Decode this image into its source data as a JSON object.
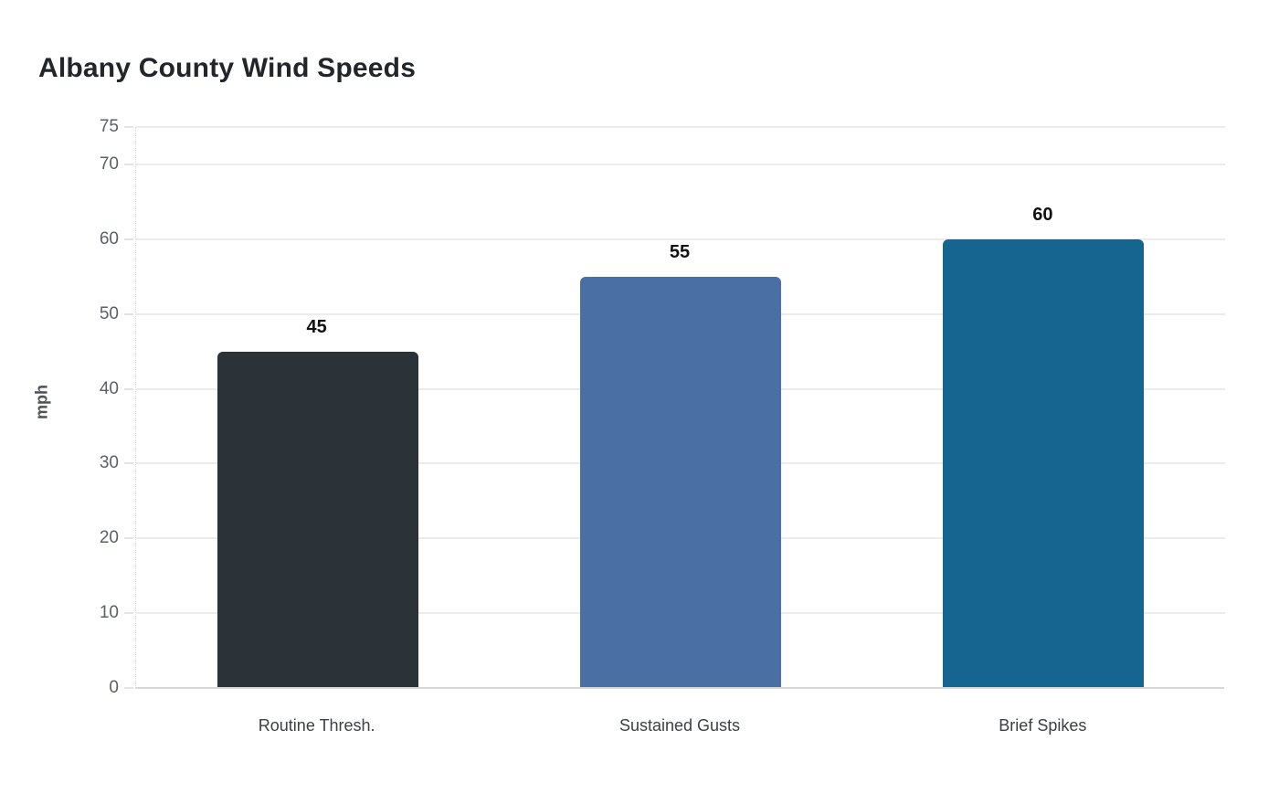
{
  "title": "Albany County Wind Speeds",
  "chart_data": {
    "type": "bar",
    "title": "Albany County Wind Speeds",
    "xlabel": "",
    "ylabel": "mph",
    "categories": [
      "Routine Thresh.",
      "Sustained Gusts",
      "Brief Spikes"
    ],
    "values": [
      45,
      55,
      60
    ],
    "value_labels": [
      "45",
      "55",
      "60"
    ],
    "bar_colors": [
      "#2b3338",
      "#4a6fa5",
      "#166590"
    ],
    "ylim": [
      0,
      75
    ],
    "yticks": [
      0,
      10,
      20,
      30,
      40,
      50,
      60,
      70,
      75
    ],
    "grid": "horizontal",
    "legend_position": "none",
    "background_color": "#ffffff",
    "gridline_color": "#ececec",
    "axis_line_color": "#d8d8d8",
    "title_color": "#22262a",
    "tick_label_color": "#5b6066",
    "category_label_color": "#3b4046",
    "value_label_color": "#111111"
  }
}
